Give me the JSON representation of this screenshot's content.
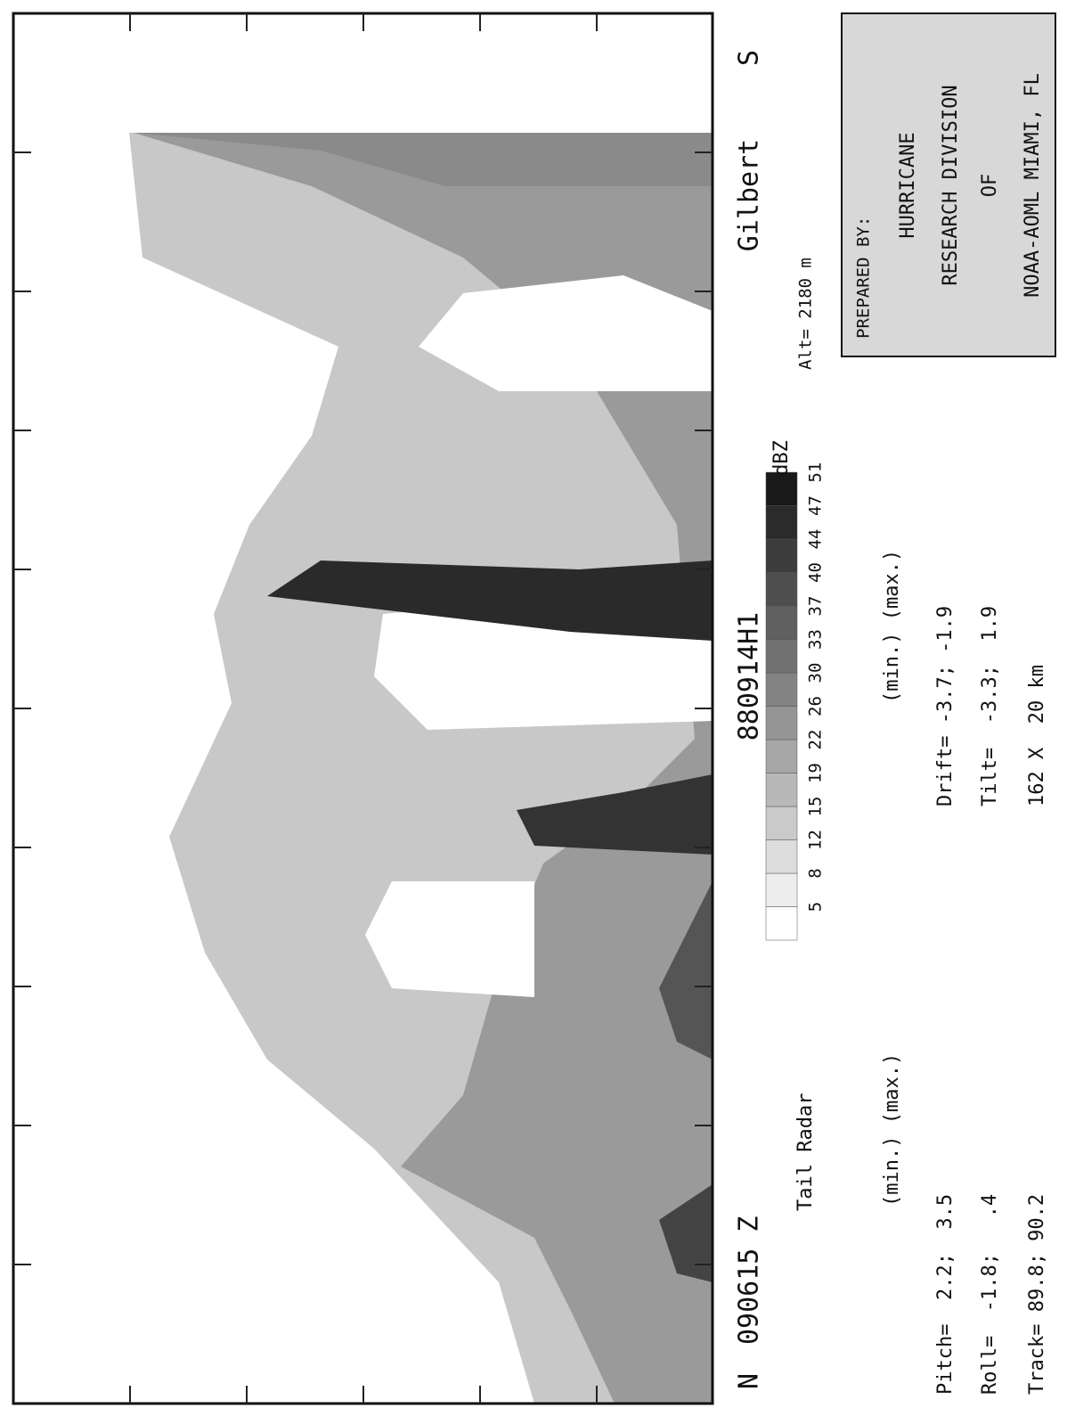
{
  "plot": {
    "left_label": "N",
    "time": "090615 Z",
    "flight": "880914H1",
    "storm": "Gilbert",
    "right_label": "S"
  },
  "colorbar": {
    "labels": [
      5,
      8,
      12,
      15,
      19,
      22,
      26,
      30,
      33,
      37,
      40,
      44,
      47,
      51
    ],
    "unit": "dBZ"
  },
  "info": {
    "radar": "Tail Radar",
    "left_header": "(min.) (max.)",
    "pitch": "Pitch=  2.2;  3.5",
    "roll": "Roll=  -1.8;   .4",
    "track": "Track= 89.8; 90.2",
    "right_header": "(min.) (max.)",
    "drift": "Drift= -3.7; -1.9",
    "tilt": "Tilt=  -3.3;  1.9",
    "size": "162 X  20 km",
    "altitude": "Alt= 2180 m"
  },
  "credit": {
    "lines": [
      "PREPARED BY:",
      "HURRICANE",
      "RESEARCH DIVISION",
      "OF",
      "NOAA-AOML MIAMI, FL"
    ]
  }
}
